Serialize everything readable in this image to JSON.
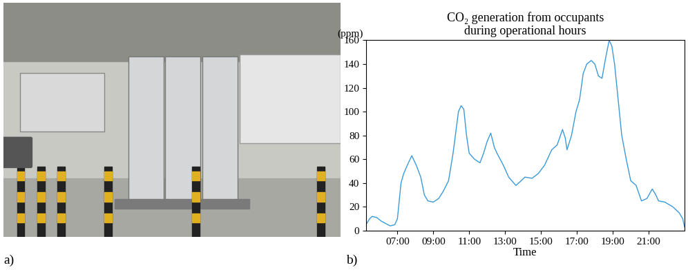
{
  "panel_labels": [
    "a)",
    "b)"
  ],
  "chart_data": {
    "type": "line",
    "title": "CO₂ generation from occupants\nduring operational hours",
    "x_label": "Time",
    "y_label": "(ppm)",
    "color": "#3a9ad9",
    "grid": false,
    "x": [
      5.25,
      5.45,
      5.6,
      5.85,
      6.1,
      6.35,
      6.6,
      6.85,
      7.0,
      7.2,
      7.35,
      7.55,
      7.8,
      8.05,
      8.3,
      8.5,
      8.7,
      9.0,
      9.3,
      9.55,
      9.85,
      10.1,
      10.4,
      10.55,
      10.7,
      10.85,
      11.0,
      11.3,
      11.6,
      11.8,
      12.0,
      12.2,
      12.4,
      12.55,
      12.9,
      13.2,
      13.6,
      13.9,
      14.1,
      14.5,
      14.85,
      15.2,
      15.6,
      15.9,
      16.2,
      16.35,
      16.45,
      16.7,
      16.95,
      17.15,
      17.35,
      17.55,
      17.8,
      18.0,
      18.2,
      18.4,
      18.6,
      18.8,
      18.95,
      19.1,
      19.3,
      19.5,
      19.75,
      20.0,
      20.3,
      20.6,
      20.9,
      21.2,
      21.4,
      21.55,
      21.9,
      22.35,
      22.7,
      22.9,
      23.0
    ],
    "values": [
      5,
      10,
      12,
      11,
      8,
      6,
      4,
      5,
      10,
      40,
      48,
      55,
      63,
      55,
      45,
      30,
      25,
      24,
      27,
      33,
      42,
      65,
      100,
      105,
      102,
      80,
      65,
      60,
      57,
      65,
      75,
      82,
      70,
      65,
      55,
      45,
      38,
      42,
      45,
      44,
      48,
      55,
      68,
      72,
      85,
      78,
      68,
      80,
      100,
      110,
      132,
      140,
      143,
      140,
      130,
      128,
      145,
      160,
      155,
      140,
      110,
      80,
      60,
      42,
      38,
      25,
      27,
      35,
      30,
      25,
      24,
      20,
      15,
      10,
      3
    ],
    "xlim": [
      5.25,
      23.0
    ],
    "xticks": [
      {
        "value": 7,
        "label": "07:00"
      },
      {
        "value": 9,
        "label": "09:00"
      },
      {
        "value": 11,
        "label": "11:00"
      },
      {
        "value": 13,
        "label": "13:00"
      },
      {
        "value": 15,
        "label": "15:00"
      },
      {
        "value": 17,
        "label": "17:00"
      },
      {
        "value": 19,
        "label": "19:00"
      },
      {
        "value": 21,
        "label": "21:00"
      }
    ],
    "ylim": [
      0,
      160
    ],
    "yticks": [
      0,
      20,
      40,
      60,
      80,
      100,
      120,
      140,
      160
    ]
  }
}
